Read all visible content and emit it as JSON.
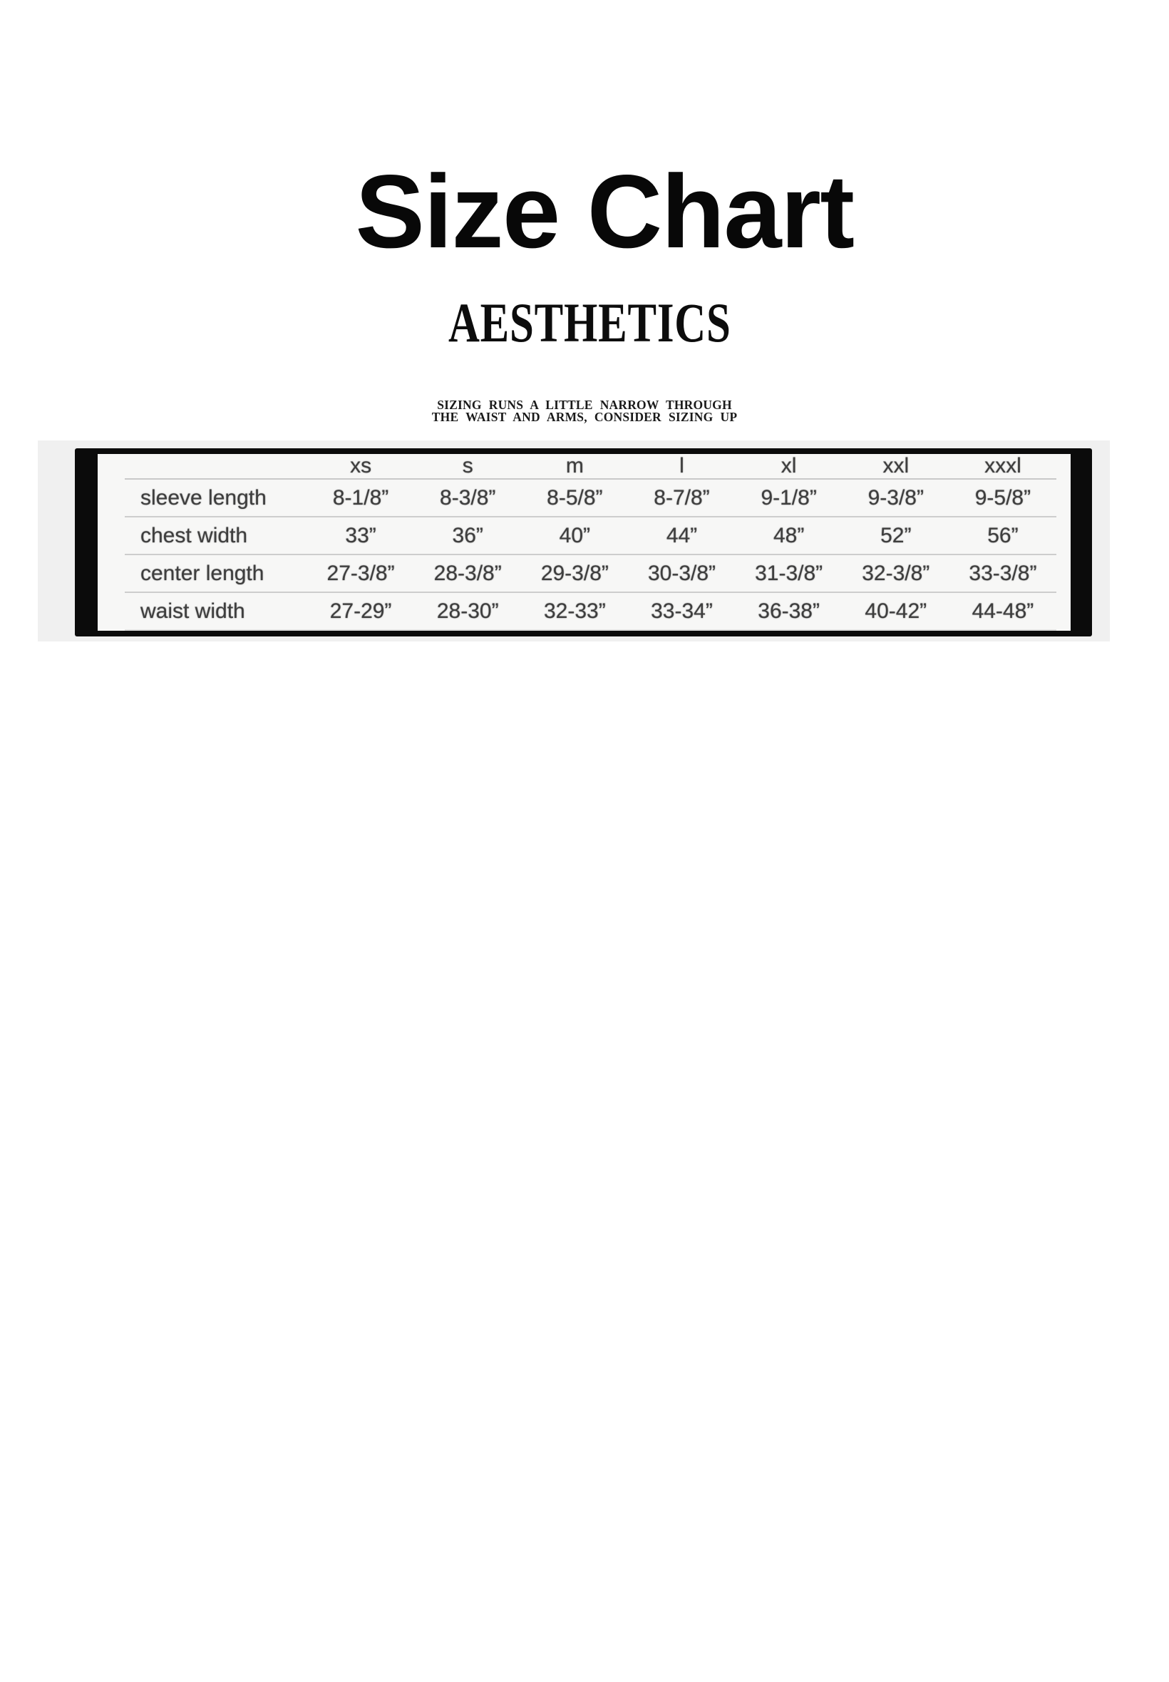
{
  "header": {
    "title": "Size Chart",
    "subtitle": "AESTHETICS",
    "note_line1": "SIZING RUNS A LITTLE NARROW THROUGH",
    "note_line2": "THE WAIST AND ARMS, CONSIDER SIZING UP"
  },
  "size_table": {
    "columns": [
      "",
      "xs",
      "s",
      "m",
      "l",
      "xl",
      "xxl",
      "xxxl"
    ],
    "rows": [
      {
        "label": "sleeve length",
        "values": [
          "8-1/8”",
          "8-3/8”",
          "8-5/8”",
          "8-7/8”",
          "9-1/8”",
          "9-3/8”",
          "9-5/8”"
        ]
      },
      {
        "label": "chest width",
        "values": [
          "33”",
          "36”",
          "40”",
          "44”",
          "48”",
          "52”",
          "56”"
        ]
      },
      {
        "label": "center length",
        "values": [
          "27-3/8”",
          "28-3/8”",
          "29-3/8”",
          "30-3/8”",
          "31-3/8”",
          "32-3/8”",
          "33-3/8”"
        ]
      },
      {
        "label": "waist width",
        "values": [
          "27-29”",
          "28-30”",
          "32-33”",
          "33-34”",
          "36-38”",
          "40-42”",
          "44-48”"
        ]
      }
    ]
  },
  "colors": {
    "page_bg": "#ffffff",
    "title_text": "#080808",
    "subtitle_text": "#0c0c0c",
    "note_text": "#1a1a1a",
    "band_bg": "#f0f0f0",
    "frame": "#0b0b0b",
    "table_bg": "#f7f7f6",
    "table_text": "#3e3e3e",
    "rule": "#c9c9c9"
  }
}
